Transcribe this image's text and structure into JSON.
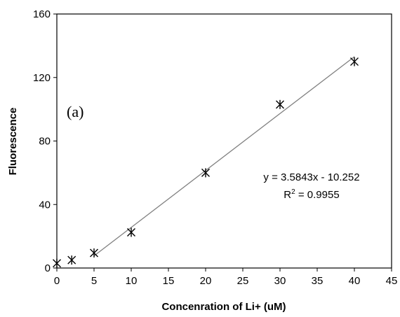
{
  "chart_data": {
    "type": "scatter",
    "title": "",
    "panel_label": "(a)",
    "xlabel": "Concenration of Li+ (uM)",
    "ylabel": "Fluorescence",
    "xlim": [
      0,
      45
    ],
    "ylim": [
      0,
      160
    ],
    "xticks": [
      0,
      5,
      10,
      15,
      20,
      25,
      30,
      35,
      40,
      45
    ],
    "yticks": [
      0,
      40,
      80,
      120,
      160
    ],
    "grid": false,
    "legend": "none",
    "series": [
      {
        "marker": "asterisk",
        "color": "#000000",
        "points": [
          {
            "x": 0,
            "y": 3
          },
          {
            "x": 2,
            "y": 5
          },
          {
            "x": 5,
            "y": 9.5
          },
          {
            "x": 10,
            "y": 22.5
          },
          {
            "x": 20,
            "y": 60
          },
          {
            "x": 30,
            "y": 103
          },
          {
            "x": 40,
            "y": 130
          }
        ]
      }
    ],
    "trendline": {
      "type": "linear",
      "slope": 3.5843,
      "intercept": -10.252,
      "x_range": [
        5,
        40
      ],
      "color": "#808080",
      "equation_text": "y = 3.5843x - 10.252",
      "r2_prefix": "R",
      "r2_sup": "2",
      "r2_value": " = 0.9955"
    }
  }
}
